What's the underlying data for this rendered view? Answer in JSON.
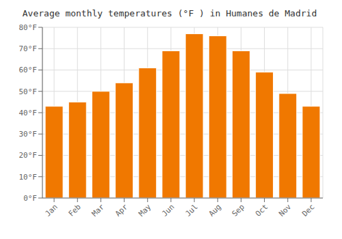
{
  "chart_data": {
    "type": "bar",
    "title": "Average monthly temperatures (°F ) in Humanes de Madrid",
    "categories": [
      "Jan",
      "Feb",
      "Mar",
      "Apr",
      "May",
      "Jun",
      "Jul",
      "Aug",
      "Sep",
      "Oct",
      "Nov",
      "Dec"
    ],
    "values": [
      43,
      45,
      50,
      54,
      61,
      69,
      77,
      76,
      69,
      59,
      49,
      43
    ],
    "color": "#F07800",
    "ylim": [
      0,
      80
    ],
    "yticks": [
      {
        "value": 0,
        "label": "0°F"
      },
      {
        "value": 10,
        "label": "10°F"
      },
      {
        "value": 20,
        "label": "20°F"
      },
      {
        "value": 30,
        "label": "30°F"
      },
      {
        "value": 40,
        "label": "40°F"
      },
      {
        "value": 50,
        "label": "50°F"
      },
      {
        "value": 60,
        "label": "60°F"
      },
      {
        "value": 70,
        "label": "70°F"
      },
      {
        "value": 80,
        "label": "80°F"
      }
    ],
    "grid": true
  }
}
